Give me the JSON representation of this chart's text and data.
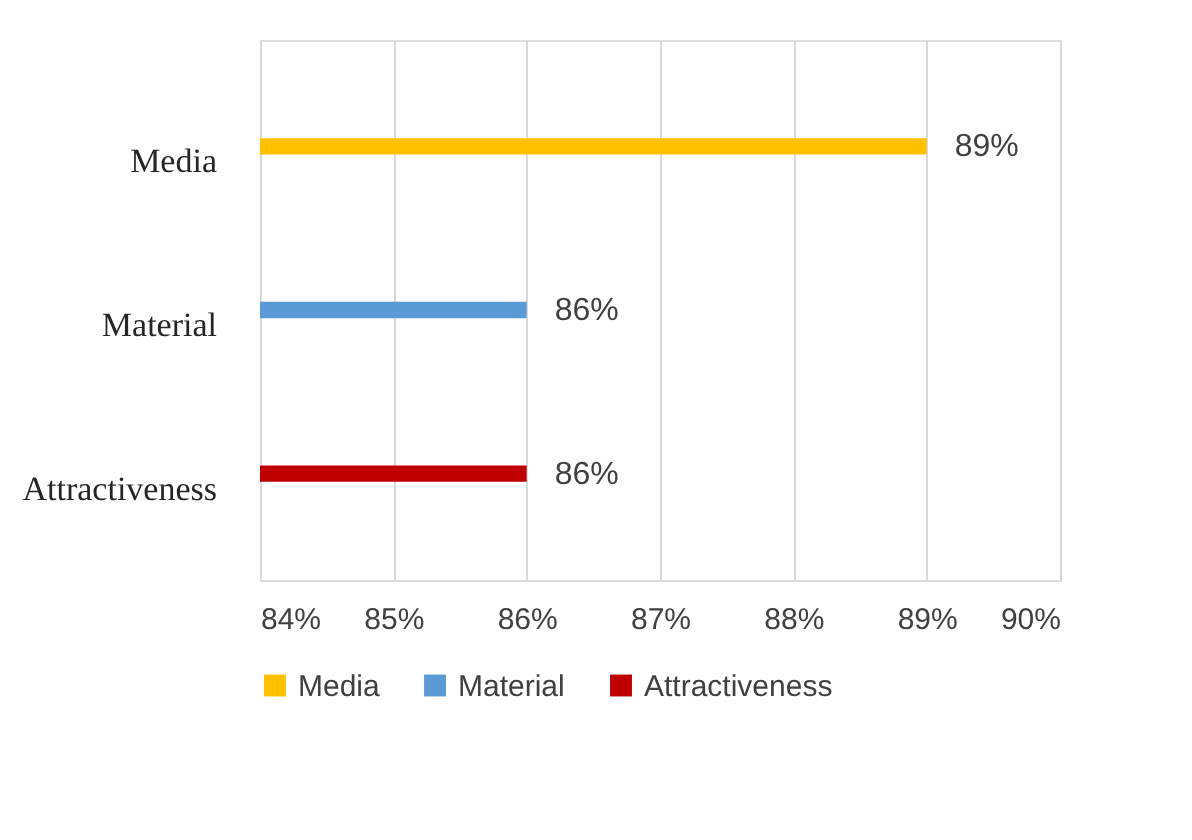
{
  "chart_data": {
    "type": "bar",
    "orientation": "horizontal",
    "categories": [
      "Media",
      "Material",
      "Attractiveness"
    ],
    "series": [
      {
        "name": "Media",
        "color": "#ffc000",
        "values": [
          89,
          null,
          null
        ],
        "value_labels": [
          "89%",
          null,
          null
        ]
      },
      {
        "name": "Material",
        "color": "#5b9bd5",
        "values": [
          null,
          86,
          null
        ],
        "value_labels": [
          null,
          "86%",
          null
        ]
      },
      {
        "name": "Attractiveness",
        "color": "#c00000",
        "values": [
          null,
          null,
          86
        ],
        "value_labels": [
          null,
          null,
          "86%"
        ]
      }
    ],
    "xlim": [
      84,
      90
    ],
    "xticks": [
      {
        "value": 84,
        "label": "84%"
      },
      {
        "value": 85,
        "label": "85%"
      },
      {
        "value": 86,
        "label": "86%"
      },
      {
        "value": 87,
        "label": "87%"
      },
      {
        "value": 88,
        "label": "88%"
      },
      {
        "value": 89,
        "label": "89%"
      },
      {
        "value": 90,
        "label": "90%"
      }
    ],
    "grid": "x",
    "legend": "bottom"
  }
}
